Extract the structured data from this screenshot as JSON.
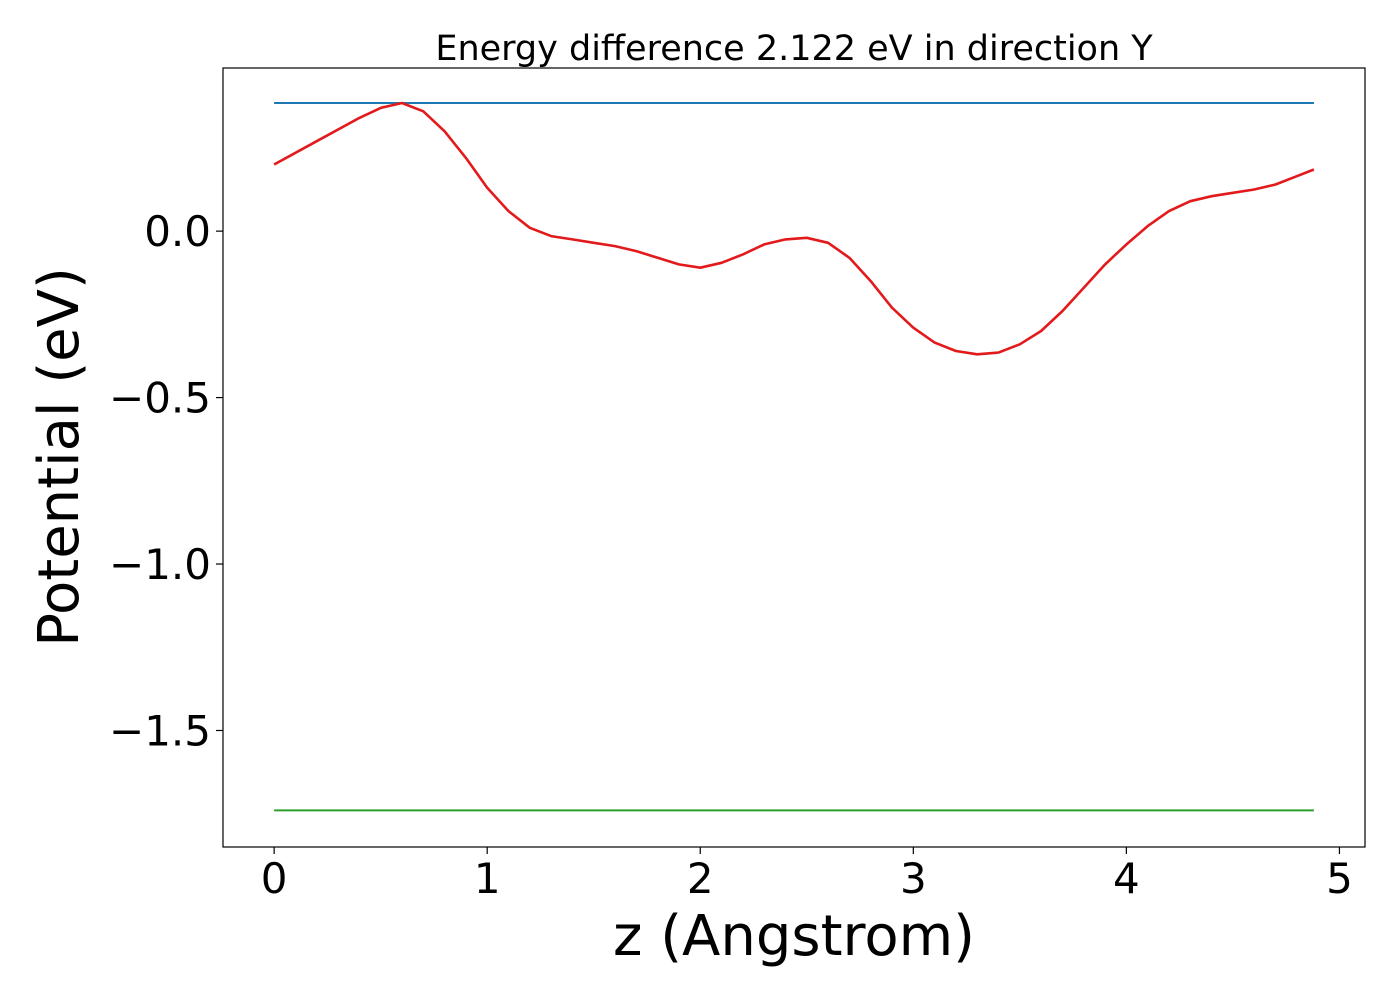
{
  "chart_data": {
    "type": "line",
    "title": "Energy difference 2.122 eV in direction Y",
    "xlabel": "z (Angstrom)",
    "ylabel": "Potential (eV)",
    "xlim": [
      -0.24,
      5.12
    ],
    "ylim": [
      -1.85,
      0.49
    ],
    "x_ticks": [
      0,
      1,
      2,
      3,
      4,
      5
    ],
    "x_tick_labels": [
      "0",
      "1",
      "2",
      "3",
      "4",
      "5"
    ],
    "y_ticks": [
      0.0,
      -0.5,
      -1.0,
      -1.5
    ],
    "y_tick_labels": [
      "0.0",
      "−0.5",
      "−1.0",
      "−1.5"
    ],
    "grid": false,
    "series": [
      {
        "color": "#1f77b4",
        "x": [
          0,
          4.88
        ],
        "y": [
          0.385,
          0.385
        ]
      },
      {
        "color": "#2ca02c",
        "x": [
          0,
          4.88
        ],
        "y": [
          -1.74,
          -1.74
        ]
      },
      {
        "color": "#e31a1c",
        "x": [
          0,
          0.2,
          0.4,
          0.5,
          0.6,
          0.7,
          0.8,
          0.9,
          1.0,
          1.1,
          1.2,
          1.3,
          1.4,
          1.5,
          1.6,
          1.7,
          1.8,
          1.9,
          2.0,
          2.1,
          2.2,
          2.3,
          2.4,
          2.5,
          2.6,
          2.7,
          2.8,
          2.9,
          3.0,
          3.1,
          3.2,
          3.3,
          3.4,
          3.5,
          3.6,
          3.7,
          3.8,
          3.9,
          4.0,
          4.1,
          4.2,
          4.3,
          4.4,
          4.5,
          4.6,
          4.7,
          4.8,
          4.88
        ],
        "y": [
          0.2,
          0.27,
          0.34,
          0.37,
          0.385,
          0.36,
          0.3,
          0.22,
          0.13,
          0.06,
          0.01,
          -0.015,
          -0.025,
          -0.035,
          -0.045,
          -0.06,
          -0.08,
          -0.1,
          -0.11,
          -0.095,
          -0.07,
          -0.04,
          -0.025,
          -0.02,
          -0.035,
          -0.08,
          -0.15,
          -0.23,
          -0.29,
          -0.335,
          -0.36,
          -0.37,
          -0.365,
          -0.34,
          -0.3,
          -0.24,
          -0.17,
          -0.1,
          -0.04,
          0.015,
          0.06,
          0.09,
          0.105,
          0.115,
          0.125,
          0.14,
          0.165,
          0.185
        ]
      }
    ]
  }
}
